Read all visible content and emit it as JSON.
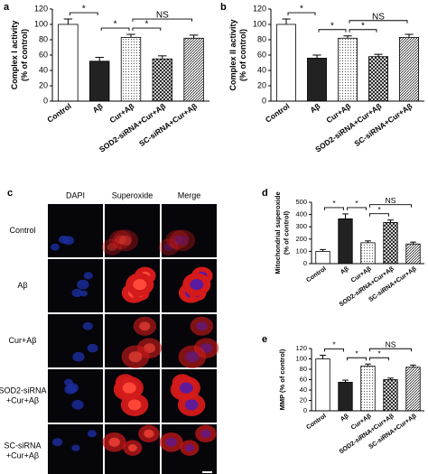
{
  "chart_data": [
    {
      "type": "bar",
      "panel": "a",
      "ylabel": [
        "Complex I activity",
        "(% of control)"
      ],
      "categories": [
        "Control",
        "Aβ",
        "Cur+Aβ",
        "SOD2-siRNA+Cur+Aβ",
        "SC-siRNA+Cur+Aβ"
      ],
      "values": [
        100,
        52,
        83,
        55,
        82
      ],
      "errors": [
        7,
        5,
        4,
        4,
        4
      ],
      "patterns": [
        "white",
        "black",
        "dots",
        "checker",
        "hatch"
      ],
      "ylim": [
        0,
        120
      ],
      "yticks": [
        0,
        20,
        40,
        60,
        80,
        100,
        120
      ],
      "brackets": [
        {
          "label": "*",
          "between": [
            0,
            1
          ]
        },
        {
          "label": "*",
          "between": [
            1,
            2
          ]
        },
        {
          "label": "*",
          "between": [
            2,
            3
          ]
        },
        {
          "label": "NS",
          "between": [
            2,
            4
          ]
        }
      ]
    },
    {
      "type": "bar",
      "panel": "b",
      "ylabel": [
        "Complex II activity",
        "(% of control)"
      ],
      "categories": [
        "Control",
        "Aβ",
        "Cur+Aβ",
        "SOD2-siRNA+Cur+Aβ",
        "SC-siRNA+Cur+Aβ"
      ],
      "values": [
        100,
        56,
        82,
        58,
        83
      ],
      "errors": [
        7,
        4,
        3,
        3,
        4
      ],
      "patterns": [
        "white",
        "black",
        "dots",
        "checker",
        "hatch"
      ],
      "ylim": [
        0,
        120
      ],
      "yticks": [
        0,
        20,
        40,
        60,
        80,
        100,
        120
      ],
      "brackets": [
        {
          "label": "*",
          "between": [
            0,
            1
          ]
        },
        {
          "label": "*",
          "between": [
            1,
            2
          ]
        },
        {
          "label": "*",
          "between": [
            2,
            3
          ]
        },
        {
          "label": "NS",
          "between": [
            2,
            4
          ]
        }
      ]
    },
    {
      "type": "bar",
      "panel": "d",
      "ylabel": [
        "Mitochondrial superoxide",
        "(% of control)"
      ],
      "categories": [
        "Control",
        "Aβ",
        "Cur+Aβ",
        "SOD2-siRNA+Cur+Aβ",
        "SC-siRNA+Cur+Aβ"
      ],
      "values": [
        100,
        365,
        170,
        335,
        160
      ],
      "errors": [
        15,
        40,
        15,
        20,
        15
      ],
      "patterns": [
        "white",
        "black",
        "dots",
        "checker",
        "hatch"
      ],
      "ylim": [
        0,
        500
      ],
      "yticks": [
        0,
        100,
        200,
        300,
        400,
        500
      ],
      "brackets": [
        {
          "label": "*",
          "between": [
            0,
            1
          ]
        },
        {
          "label": "*",
          "between": [
            1,
            2
          ]
        },
        {
          "label": "*",
          "between": [
            2,
            3
          ]
        },
        {
          "label": "NS",
          "between": [
            2,
            4
          ]
        }
      ]
    },
    {
      "type": "bar",
      "panel": "e",
      "ylabel": [
        "MMP (% of control)"
      ],
      "categories": [
        "Control",
        "Aβ",
        "Cur+Aβ",
        "SOD2-siRNA+Cur+Aβ",
        "SC-siRNA+Cur+Aβ"
      ],
      "values": [
        100,
        55,
        86,
        60,
        84
      ],
      "errors": [
        7,
        4,
        4,
        3,
        4
      ],
      "patterns": [
        "white",
        "black",
        "dots",
        "checker",
        "hatch"
      ],
      "ylim": [
        0,
        120
      ],
      "yticks": [
        0,
        20,
        40,
        60,
        80,
        100,
        120
      ],
      "brackets": [
        {
          "label": "*",
          "between": [
            0,
            1
          ]
        },
        {
          "label": "*",
          "between": [
            1,
            2
          ]
        },
        {
          "label": "*",
          "between": [
            2,
            3
          ]
        },
        {
          "label": "NS",
          "between": [
            2,
            4
          ]
        }
      ]
    }
  ],
  "microscopy": {
    "panel": "c",
    "columns": [
      "DAPI",
      "Superoxide",
      "Merge"
    ],
    "rows": [
      [
        "Control"
      ],
      [
        "Aβ"
      ],
      [
        "Cur+Aβ"
      ],
      [
        "SOD2-siRNA",
        "+Cur+Aβ"
      ],
      [
        "SC-siRNA",
        "+Cur+Aβ"
      ]
    ]
  }
}
